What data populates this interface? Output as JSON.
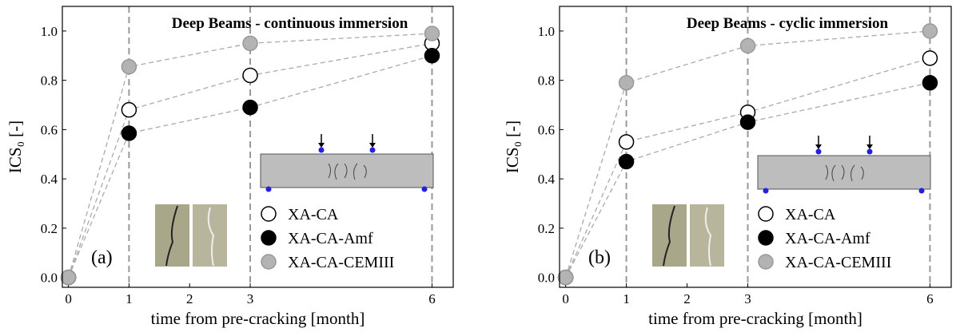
{
  "chart_data": [
    {
      "type": "scatter",
      "title": "Deep Beams - continuous immersion",
      "panel_label": "(a)",
      "x_label": "time from pre-cracking [month]",
      "y_label": "ICS₀ [-]",
      "x": [
        0,
        1,
        3,
        6
      ],
      "xlim": [
        -0.1,
        6.35
      ],
      "xticks": [
        0,
        1,
        2,
        3,
        6
      ],
      "ylim": [
        -0.04,
        1.1
      ],
      "yticks": [
        {
          "value": 0,
          "label": "0.0"
        },
        {
          "value": 0.2,
          "label": "0.2"
        },
        {
          "value": 0.4,
          "label": "0.4"
        },
        {
          "value": 0.6,
          "label": "0.6"
        },
        {
          "value": 0.8,
          "label": "0.8"
        },
        {
          "value": 1,
          "label": "1.0"
        }
      ],
      "vlines": [
        1,
        3,
        6
      ],
      "series": [
        {
          "name": "XA-CA",
          "color": "#ffffff",
          "values": [
            0,
            0.68,
            0.82,
            0.95
          ]
        },
        {
          "name": "XA-CA-Amf",
          "color": "#000000",
          "values": [
            0,
            0.585,
            0.69,
            0.9
          ]
        },
        {
          "name": "XA-CA-CEMIII",
          "color": "#b3b3b3",
          "values": [
            0,
            0.855,
            0.95,
            0.99
          ]
        }
      ]
    },
    {
      "type": "scatter",
      "title": "Deep Beams - cyclic immersion",
      "panel_label": "(b)",
      "x_label": "time from pre-cracking [month]",
      "y_label": "ICS₀ [-]",
      "x": [
        0,
        1,
        3,
        6
      ],
      "xlim": [
        -0.1,
        6.35
      ],
      "xticks": [
        0,
        1,
        2,
        3,
        6
      ],
      "ylim": [
        -0.04,
        1.1
      ],
      "yticks": [
        {
          "value": 0,
          "label": "0.0"
        },
        {
          "value": 0.2,
          "label": "0.2"
        },
        {
          "value": 0.4,
          "label": "0.4"
        },
        {
          "value": 0.6,
          "label": "0.6"
        },
        {
          "value": 0.8,
          "label": "0.8"
        },
        {
          "value": 1,
          "label": "1.0"
        }
      ],
      "vlines": [
        1,
        3,
        6
      ],
      "series": [
        {
          "name": "XA-CA",
          "color": "#ffffff",
          "values": [
            0,
            0.55,
            0.67,
            0.89
          ]
        },
        {
          "name": "XA-CA-Amf",
          "color": "#000000",
          "values": [
            0,
            0.47,
            0.63,
            0.79
          ]
        },
        {
          "name": "XA-CA-CEMIII",
          "color": "#b3b3b3",
          "values": [
            0,
            0.79,
            0.94,
            1
          ]
        }
      ]
    }
  ]
}
